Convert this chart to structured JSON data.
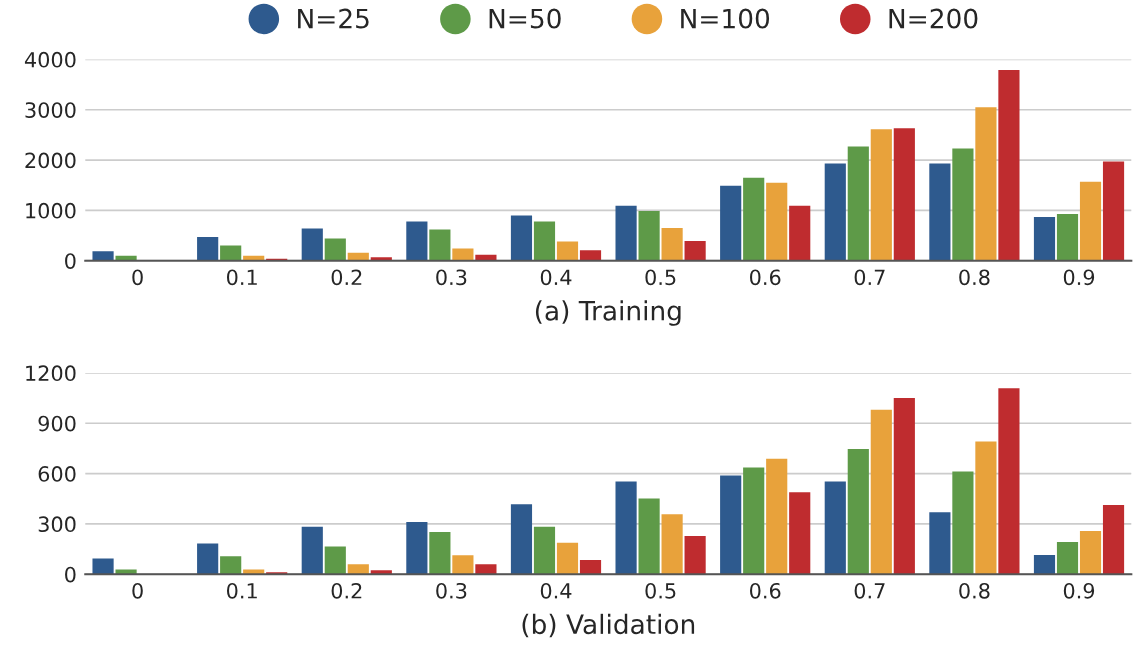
{
  "chart_data": [
    {
      "type": "bar",
      "xlabel": "(a) Training",
      "categories": [
        "0",
        "0.1",
        "0.2",
        "0.3",
        "0.4",
        "0.5",
        "0.6",
        "0.7",
        "0.8",
        "0.9"
      ],
      "series": [
        {
          "name": "N=25",
          "color": "#2e5a8e",
          "values": [
            190,
            470,
            640,
            780,
            900,
            1090,
            1490,
            1930,
            1930,
            870
          ]
        },
        {
          "name": "N=50",
          "color": "#5e9a48",
          "values": [
            100,
            300,
            440,
            620,
            780,
            990,
            1650,
            2270,
            2230,
            930
          ]
        },
        {
          "name": "N=100",
          "color": "#e8a23b",
          "values": [
            10,
            100,
            160,
            240,
            380,
            650,
            1550,
            2610,
            3050,
            1570
          ]
        },
        {
          "name": "N=200",
          "color": "#bf2c2f",
          "values": [
            0,
            40,
            70,
            120,
            210,
            390,
            1090,
            2630,
            3790,
            1970
          ]
        }
      ],
      "ylim": [
        0,
        4000
      ],
      "yticks": [
        0,
        1000,
        2000,
        3000,
        4000
      ],
      "grid": "y",
      "legend": "top"
    },
    {
      "type": "bar",
      "xlabel": "(b) Validation",
      "categories": [
        "0",
        "0.1",
        "0.2",
        "0.3",
        "0.4",
        "0.5",
        "0.6",
        "0.7",
        "0.8",
        "0.9"
      ],
      "series": [
        {
          "color": "#2e5a8e",
          "values": [
            93,
            183,
            283,
            311,
            417,
            553,
            588,
            553,
            370,
            115
          ]
        },
        {
          "color": "#5e9a48",
          "values": [
            28,
            107,
            165,
            252,
            283,
            451,
            636,
            747,
            612,
            192
          ]
        },
        {
          "color": "#e8a23b",
          "values": [
            0,
            28,
            59,
            113,
            187,
            357,
            688,
            980,
            791,
            257
          ]
        },
        {
          "color": "#bf2c2f",
          "values": [
            0,
            11,
            24,
            59,
            85,
            227,
            488,
            1050,
            1109,
            412
          ]
        }
      ],
      "ylim": [
        0,
        1200
      ],
      "yticks": [
        0,
        300,
        600,
        900,
        1200
      ],
      "grid": "y"
    }
  ]
}
